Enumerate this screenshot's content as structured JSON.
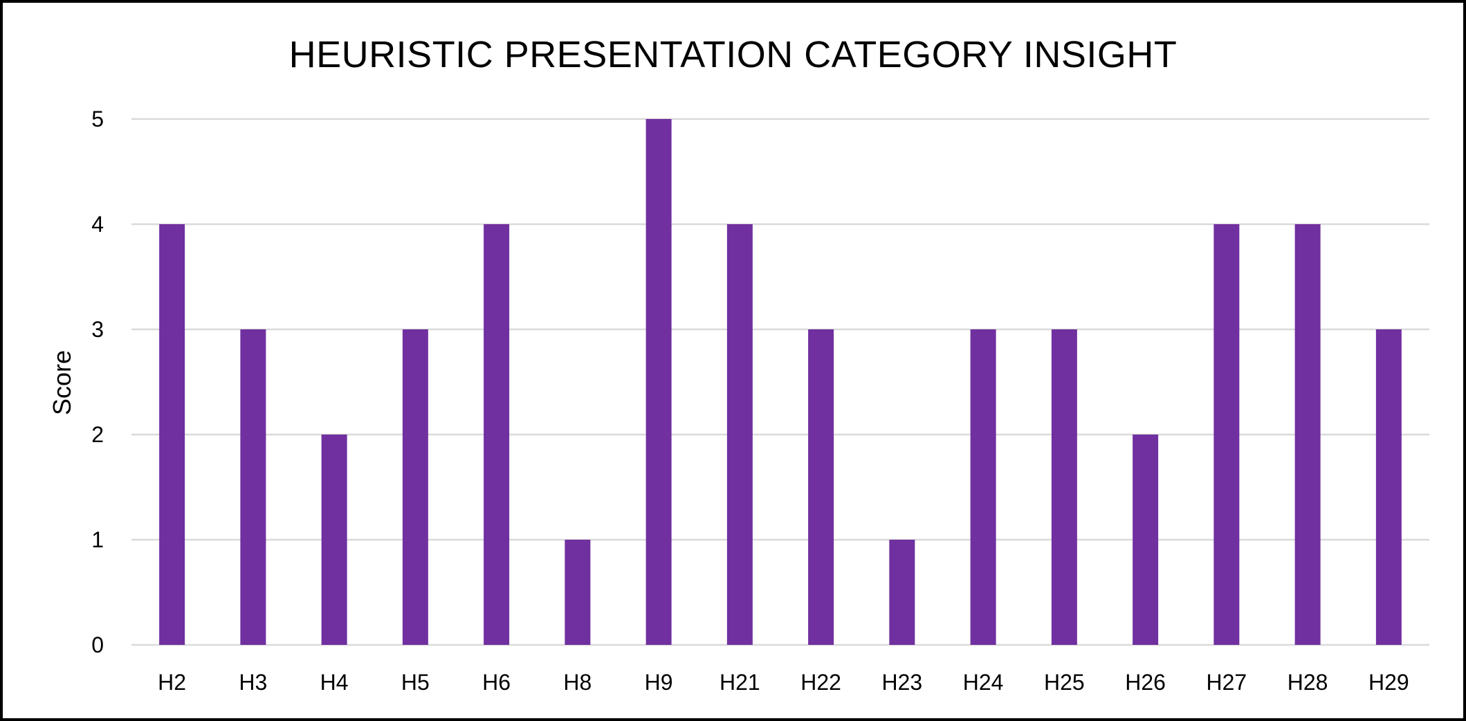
{
  "chart_data": {
    "type": "bar",
    "title": "HEURISTIC PRESENTATION CATEGORY INSIGHT",
    "xlabel": "",
    "ylabel": "Score",
    "categories": [
      "H2",
      "H3",
      "H4",
      "H5",
      "H6",
      "H8",
      "H9",
      "H21",
      "H22",
      "H23",
      "H24",
      "H25",
      "H26",
      "H27",
      "H28",
      "H29"
    ],
    "values": [
      4,
      3,
      2,
      3,
      4,
      1,
      5,
      4,
      3,
      1,
      3,
      3,
      2,
      4,
      4,
      3
    ],
    "ylim": [
      0,
      5
    ],
    "yticks": [
      "0",
      "1",
      "2",
      "3",
      "4",
      "5"
    ],
    "grid": true,
    "legend": "none",
    "colors": {
      "bar": "#7030A0",
      "grid": "#D9D9D9",
      "text": "#000000",
      "border": "#000000"
    }
  }
}
